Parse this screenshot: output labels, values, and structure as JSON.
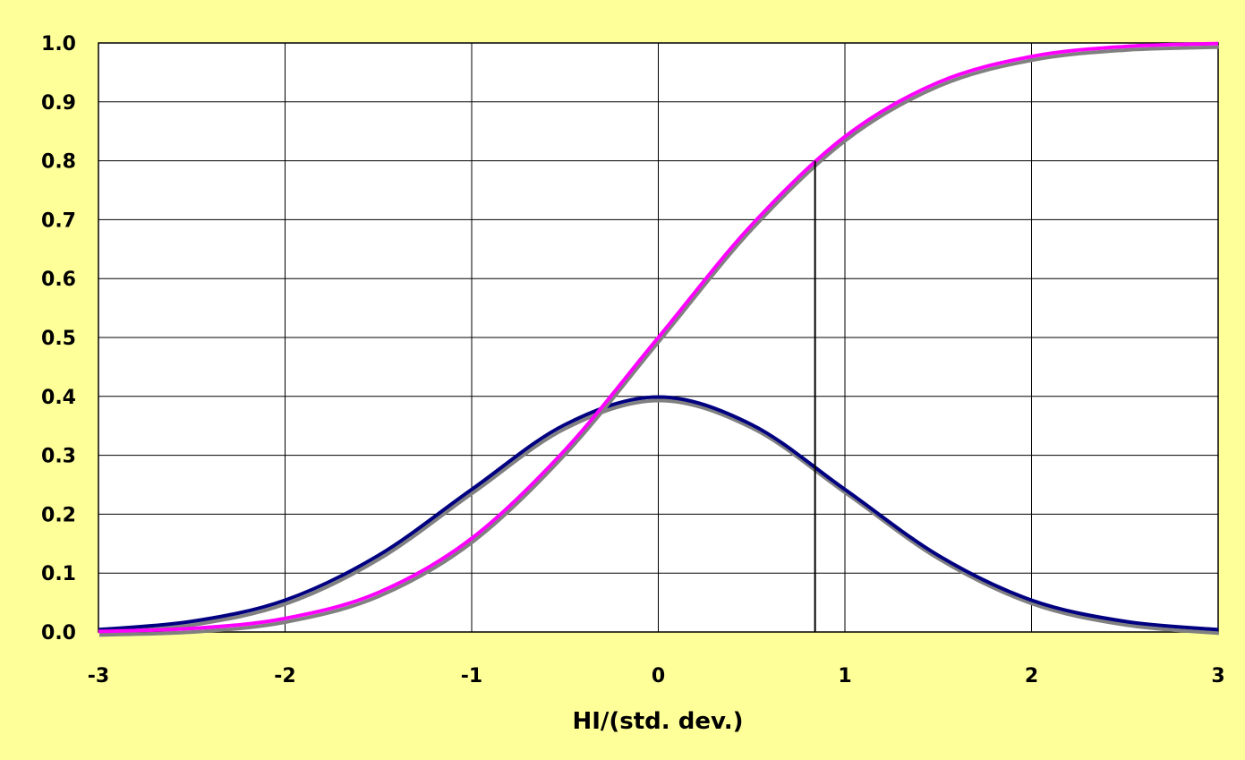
{
  "chart_data": {
    "type": "line",
    "title": "",
    "xlabel": "HI/(std. dev.)",
    "ylabel": "",
    "xlim": [
      -3,
      3
    ],
    "ylim": [
      0,
      1
    ],
    "grid": true,
    "x_ticks": [
      -3,
      -2,
      -1,
      0,
      1,
      2,
      3
    ],
    "x_tick_labels": [
      "-3",
      "-2",
      "-1",
      "0",
      "1",
      "2",
      "3"
    ],
    "y_ticks": [
      0,
      0.1,
      0.2,
      0.3,
      0.4,
      0.5,
      0.6,
      0.7,
      0.8,
      0.9,
      1.0
    ],
    "y_tick_labels": [
      "0.0",
      "0.1",
      "0.2",
      "0.3",
      "0.4",
      "0.5",
      "0.6",
      "0.7",
      "0.8",
      "0.9",
      "1.0"
    ],
    "x": [
      -3,
      -2.5,
      -2,
      -1.5,
      -1,
      -0.5,
      0,
      0.5,
      1,
      1.5,
      2,
      2.5,
      3
    ],
    "series": [
      {
        "color": "#000080",
        "shadow_color": "#808080",
        "values": [
          0.004,
          0.018,
          0.054,
          0.13,
          0.242,
          0.352,
          0.399,
          0.352,
          0.242,
          0.13,
          0.054,
          0.018,
          0.004
        ]
      },
      {
        "color": "#ff00ff",
        "shadow_color": "#808080",
        "values": [
          0.001,
          0.006,
          0.023,
          0.067,
          0.159,
          0.309,
          0.5,
          0.691,
          0.841,
          0.933,
          0.977,
          0.994,
          0.999
        ]
      }
    ],
    "annotations": [
      {
        "type": "vertical-line",
        "x": 0.84,
        "y_from": 0,
        "y_to": 0.8,
        "color": "#000000"
      }
    ]
  }
}
